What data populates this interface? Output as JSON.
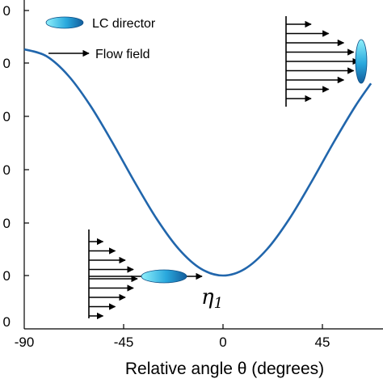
{
  "chart_data": {
    "type": "line",
    "xlabel": "Relative angle θ (degrees)",
    "x_ticks": [
      "-90",
      "-45",
      "0",
      "45"
    ],
    "y_ticks_visible": [
      "0",
      "0",
      "0",
      "0",
      "0",
      "0",
      "0"
    ],
    "xlim": [
      -90,
      67
    ],
    "grid": false,
    "series": [
      {
        "color": "#2166ac",
        "x": [
          -90,
          -80,
          -70,
          -60,
          -50,
          -40,
          -30,
          -20,
          -10,
          0,
          10,
          20,
          30,
          40,
          50,
          60,
          67
        ],
        "y": [
          1.0,
          0.97,
          0.883,
          0.75,
          0.587,
          0.413,
          0.25,
          0.117,
          0.03,
          0.0,
          0.03,
          0.117,
          0.25,
          0.413,
          0.587,
          0.75,
          0.849
        ]
      }
    ],
    "legend": {
      "items": [
        {
          "label": "LC director",
          "marker": "ellipse-icon"
        },
        {
          "label": "Flow field",
          "marker": "arrow-icon"
        }
      ],
      "placement": "top-left"
    },
    "annotations": [
      {
        "text": "η1",
        "main": "η",
        "sub": "1"
      }
    ]
  },
  "colors": {
    "curve": "#2166ac",
    "director_light": "#7fe3f5",
    "director_dark": "#1a6fb0"
  }
}
